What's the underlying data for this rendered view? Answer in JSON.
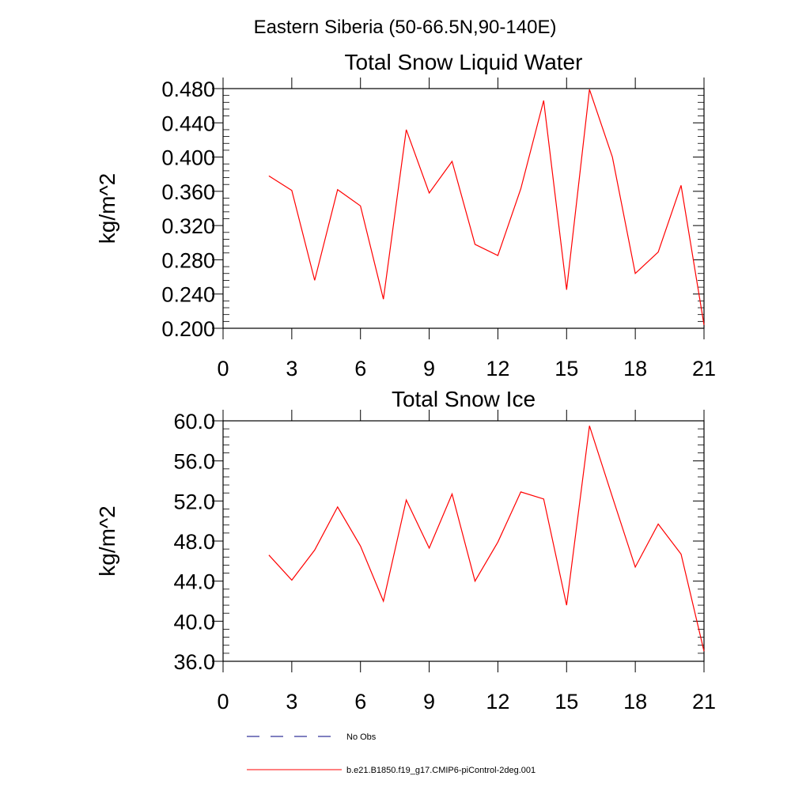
{
  "suptitle": "Eastern Siberia (50-66.5N,90-140E)",
  "legend": [
    {
      "label": "No Obs",
      "color": "#000080",
      "dash": true
    },
    {
      "label": "b.e21.B1850.f19_g17.CMIP6-piControl-2deg.001",
      "color": "#ff0000",
      "dash": false
    }
  ],
  "chart_data": [
    {
      "type": "line",
      "title": "Total Snow Liquid Water",
      "ylabel": "kg/m^2",
      "xlabel": "",
      "xlim": [
        0,
        21
      ],
      "ylim": [
        0.2,
        0.48
      ],
      "xticks": [
        "0",
        "3",
        "6",
        "9",
        "12",
        "15",
        "18",
        "21"
      ],
      "yticks": [
        "0.200",
        "0.240",
        "0.280",
        "0.320",
        "0.360",
        "0.400",
        "0.440",
        "0.480"
      ],
      "series": [
        {
          "name": "b.e21.B1850.f19_g17.CMIP6-piControl-2deg.001",
          "color": "#ff0000",
          "x": [
            2,
            3,
            4,
            5,
            6,
            7,
            8,
            9,
            10,
            11,
            12,
            13,
            14,
            15,
            16,
            17,
            18,
            19,
            20,
            21
          ],
          "values": [
            0.378,
            0.361,
            0.256,
            0.362,
            0.343,
            0.234,
            0.432,
            0.358,
            0.395,
            0.298,
            0.285,
            0.363,
            0.466,
            0.245,
            0.479,
            0.4,
            0.264,
            0.289,
            0.367,
            0.204
          ]
        }
      ]
    },
    {
      "type": "line",
      "title": "Total Snow Ice",
      "ylabel": "kg/m^2",
      "xlabel": "",
      "xlim": [
        0,
        21
      ],
      "ylim": [
        36,
        60
      ],
      "xticks": [
        "0",
        "3",
        "6",
        "9",
        "12",
        "15",
        "18",
        "21"
      ],
      "yticks": [
        "36.0",
        "40.0",
        "44.0",
        "48.0",
        "52.0",
        "56.0",
        "60.0"
      ],
      "series": [
        {
          "name": "b.e21.B1850.f19_g17.CMIP6-piControl-2deg.001",
          "color": "#ff0000",
          "x": [
            2,
            3,
            4,
            5,
            6,
            7,
            8,
            9,
            10,
            11,
            12,
            13,
            14,
            15,
            16,
            17,
            18,
            19,
            20,
            21
          ],
          "values": [
            46.6,
            44.1,
            47.1,
            51.4,
            47.5,
            42.0,
            52.1,
            47.3,
            52.7,
            44.0,
            47.9,
            52.9,
            52.2,
            41.6,
            59.5,
            52.4,
            45.4,
            49.7,
            46.7,
            37.0
          ]
        }
      ]
    }
  ]
}
